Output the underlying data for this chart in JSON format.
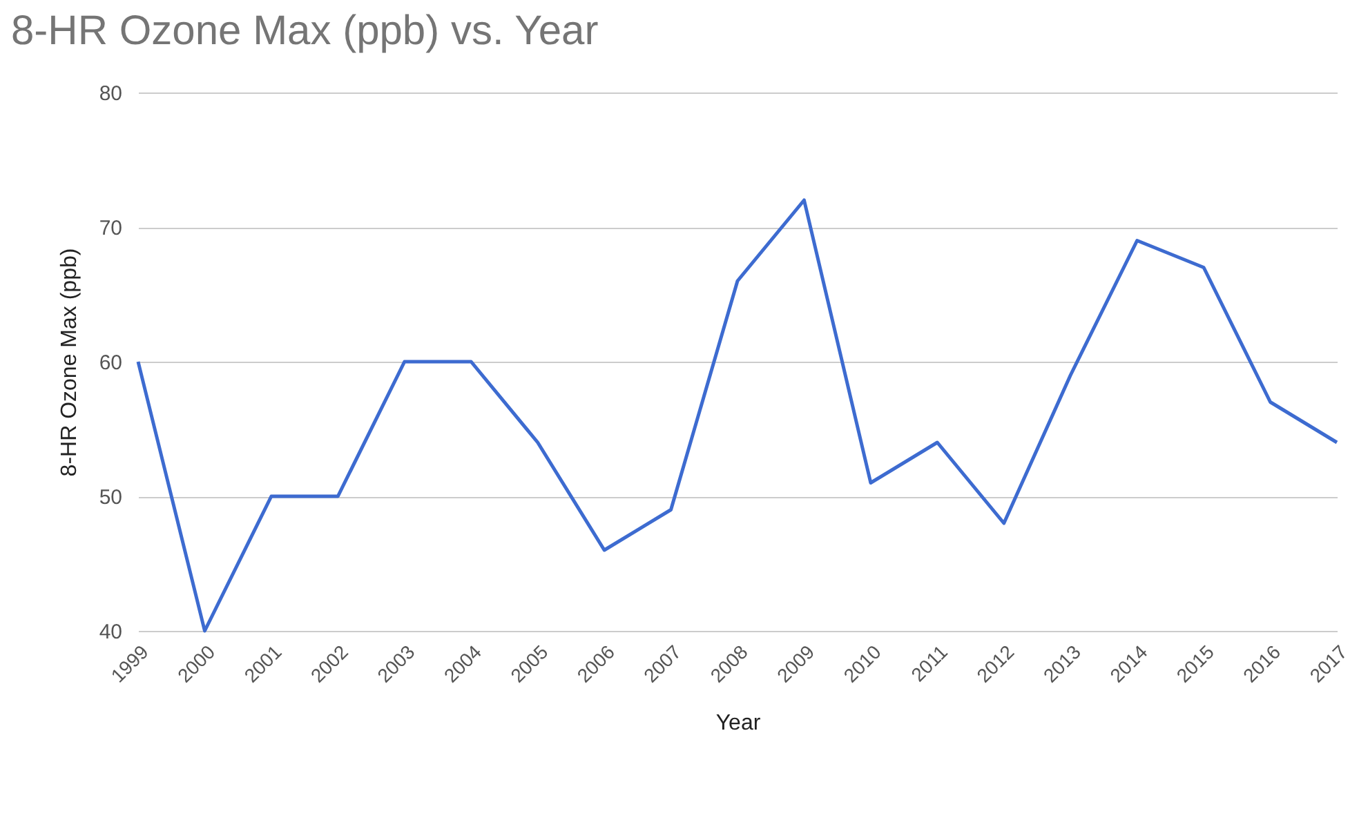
{
  "chart_data": {
    "type": "line",
    "title": "8-HR Ozone Max (ppb) vs. Year",
    "xlabel": "Year",
    "ylabel": "8-HR Ozone Max (ppb)",
    "categories": [
      "1999",
      "2000",
      "2001",
      "2002",
      "2003",
      "2004",
      "2005",
      "2006",
      "2007",
      "2008",
      "2009",
      "2010",
      "2011",
      "2012",
      "2013",
      "2014",
      "2015",
      "2016",
      "2017"
    ],
    "series": [
      {
        "color": "#3d6bd0",
        "values": [
          60,
          40,
          50,
          50,
          60,
          60,
          54,
          46,
          49,
          66,
          72,
          51,
          54,
          48,
          59,
          69,
          67,
          57,
          54
        ]
      }
    ],
    "ylim": [
      40,
      80
    ],
    "yticks": [
      40,
      50,
      60,
      70,
      80
    ],
    "grid": "y"
  }
}
